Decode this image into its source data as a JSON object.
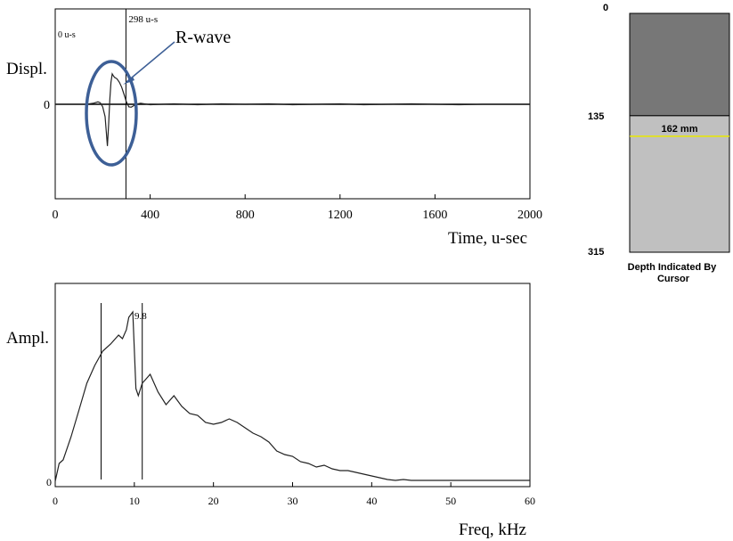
{
  "chart_data": [
    {
      "type": "line",
      "ylabel": "Displ.",
      "xlabel": "Time, u-sec",
      "xlim": [
        0,
        2000
      ],
      "x_ticks": [
        "0",
        "400",
        "800",
        "1200",
        "1600",
        "2000"
      ],
      "y_tick_label": "0",
      "cursors": [
        {
          "x": 0,
          "label": "0 u-s"
        },
        {
          "x": 298,
          "label": "298 u-s"
        }
      ],
      "annotation": "R-wave",
      "series": [
        {
          "x": [
            0,
            130,
            160,
            180,
            190,
            200,
            210,
            215,
            220,
            225,
            230,
            235,
            240,
            245,
            250,
            260,
            270,
            280,
            290,
            300,
            310,
            320,
            330,
            340,
            360,
            400,
            500,
            600,
            700,
            800,
            900,
            1000,
            1100,
            1200,
            1300,
            1400,
            1500,
            1600,
            1700,
            1800,
            1900,
            2000
          ],
          "y": [
            0,
            0,
            0.02,
            0.05,
            0.03,
            -0.05,
            -0.25,
            -0.55,
            -0.85,
            -0.4,
            0.1,
            0.45,
            0.62,
            0.58,
            0.55,
            0.52,
            0.45,
            0.35,
            0.2,
            0.05,
            -0.05,
            -0.06,
            -0.03,
            0,
            0.02,
            -0.01,
            0.01,
            -0.01,
            0.01,
            0,
            0.01,
            -0.01,
            0,
            0.01,
            -0.01,
            0,
            0.01,
            0,
            -0.01,
            0,
            0,
            0
          ]
        }
      ]
    },
    {
      "type": "line",
      "ylabel": "Ampl.",
      "xlabel": "Freq, kHz",
      "xlim": [
        0,
        60
      ],
      "x_ticks": [
        "0",
        "10",
        "20",
        "30",
        "40",
        "50",
        "60"
      ],
      "y_tick_label": "0",
      "cursors": [
        {
          "x": 5.8,
          "label": ""
        },
        {
          "x": 11.0,
          "label": ""
        }
      ],
      "peak_label": "9.8",
      "series": [
        {
          "x": [
            0,
            0.5,
            1,
            2,
            3,
            4,
            5,
            6,
            7,
            8,
            8.5,
            9,
            9.3,
            9.8,
            10.2,
            10.5,
            11,
            12,
            13,
            14,
            15,
            16,
            17,
            18,
            19,
            20,
            21,
            22,
            23,
            24,
            25,
            26,
            27,
            28,
            29,
            30,
            31,
            32,
            33,
            34,
            35,
            36,
            37,
            38,
            39,
            40,
            41,
            42,
            43,
            44,
            45,
            46,
            48,
            50,
            52,
            54,
            56,
            58,
            60
          ],
          "y": [
            0,
            0.1,
            0.12,
            0.25,
            0.4,
            0.55,
            0.65,
            0.73,
            0.77,
            0.82,
            0.8,
            0.85,
            0.92,
            0.95,
            0.52,
            0.48,
            0.55,
            0.6,
            0.5,
            0.43,
            0.48,
            0.42,
            0.38,
            0.37,
            0.33,
            0.32,
            0.33,
            0.35,
            0.33,
            0.3,
            0.27,
            0.25,
            0.22,
            0.17,
            0.15,
            0.14,
            0.11,
            0.1,
            0.08,
            0.09,
            0.07,
            0.06,
            0.06,
            0.05,
            0.04,
            0.03,
            0.02,
            0.01,
            0.005,
            0.01,
            0.005,
            0.005,
            0.005,
            0.005,
            0.005,
            0.005,
            0.005,
            0.005,
            0.005
          ]
        }
      ]
    },
    {
      "type": "bar",
      "caption": "Depth Indicated By Cursor",
      "scale_labels": [
        "0",
        "135",
        "315"
      ],
      "scale_values": [
        0,
        135,
        315
      ],
      "cursor_depth": 162,
      "cursor_label": "162 mm",
      "colors": {
        "upper": "#777777",
        "lower": "#c0c0c0",
        "cursor": "#e8e800"
      }
    }
  ]
}
